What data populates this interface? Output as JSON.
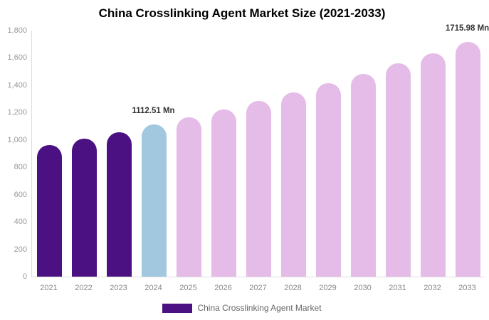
{
  "title": "China Crosslinking Agent Market Size (2021-2033)",
  "colors": {
    "historical": "#4B1182",
    "current": "#A2C8E0",
    "forecast": "#E5BBE7",
    "axis_line": "#DDDDDD",
    "ytick_label": "#999999",
    "xtick_label": "#888888",
    "data_label": "#333333",
    "legend_text": "#666666"
  },
  "chart_data": {
    "type": "bar",
    "title": "China Crosslinking Agent Market Size (2021-2033)",
    "unit": "Mn",
    "categories": [
      "2021",
      "2022",
      "2023",
      "2024",
      "2025",
      "2026",
      "2027",
      "2028",
      "2029",
      "2030",
      "2031",
      "2032",
      "2033"
    ],
    "values": [
      960,
      1007,
      1058,
      1112.51,
      1167,
      1225,
      1285,
      1349,
      1415,
      1485,
      1559,
      1636,
      1715.98
    ],
    "bar_color_keys": [
      "historical",
      "historical",
      "historical",
      "current",
      "forecast",
      "forecast",
      "forecast",
      "forecast",
      "forecast",
      "forecast",
      "forecast",
      "forecast",
      "forecast"
    ],
    "ylim": [
      0,
      1800
    ],
    "ytick_interval": 200,
    "ytick_labels": [
      "0",
      "200",
      "400",
      "600",
      "800",
      "1,000",
      "1,200",
      "1,400",
      "1,600",
      "1,800"
    ],
    "xlabel": "",
    "ylabel": "",
    "grid": false,
    "annotations": [
      {
        "index": 3,
        "text": "1112.51 Mn"
      },
      {
        "index": 12,
        "text": "1715.98 Mn"
      }
    ],
    "legend_position": "bottom-center",
    "legend": [
      {
        "label": "China Crosslinking Agent Market",
        "color_key": "historical"
      }
    ]
  }
}
